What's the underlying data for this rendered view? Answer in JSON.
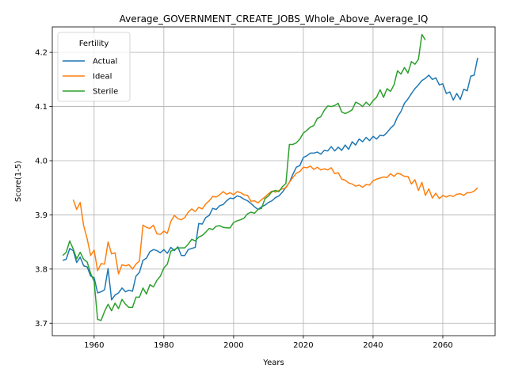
{
  "chart_data": {
    "type": "line",
    "title": "Average_GOVERNMENT_CREATE_JOBS_Whole_Above_Average_IQ",
    "xlabel": "Years",
    "ylabel": "Score(1-5)",
    "xlim": [
      1948,
      2075
    ],
    "ylim": [
      3.677,
      4.247
    ],
    "xticks": [
      1960,
      1980,
      2000,
      2020,
      2040,
      2060
    ],
    "yticks": [
      3.7,
      3.8,
      3.9,
      4.0,
      4.1,
      4.2
    ],
    "grid": true,
    "legend": {
      "title": "Fertility",
      "placement": "upper-left"
    },
    "series": [
      {
        "name": "Actual",
        "color": "#1f77b4",
        "x": [
          1951,
          1952,
          1953,
          1954,
          1955,
          1956,
          1957,
          1958,
          1959,
          1960,
          1961,
          1962,
          1963,
          1964,
          1965,
          1966,
          1967,
          1968,
          1969,
          1970,
          1971,
          1972,
          1973,
          1974,
          1975,
          1976,
          1977,
          1978,
          1979,
          1980,
          1981,
          1982,
          1983,
          1984,
          1985,
          1986,
          1987,
          1988,
          1989,
          1990,
          1991,
          1992,
          1993,
          1994,
          1995,
          1996,
          1997,
          1998,
          1999,
          2000,
          2001,
          2002,
          2003,
          2004,
          2005,
          2006,
          2007,
          2008,
          2009,
          2010,
          2011,
          2012,
          2013,
          2014,
          2015,
          2016,
          2017,
          2018,
          2019,
          2020,
          2021,
          2022,
          2023,
          2024,
          2025,
          2026,
          2027,
          2028,
          2029,
          2030,
          2031,
          2032,
          2033,
          2034,
          2035,
          2036,
          2037,
          2038,
          2039,
          2040,
          2041,
          2042,
          2043,
          2044,
          2045,
          2046,
          2047,
          2048,
          2049,
          2050,
          2051,
          2052,
          2053,
          2054,
          2055,
          2056,
          2057,
          2058,
          2059,
          2060,
          2061,
          2062,
          2063,
          2064,
          2065,
          2066,
          2067,
          2068,
          2069,
          2070
        ],
        "y": [
          3.816,
          3.818,
          3.838,
          3.834,
          3.812,
          3.822,
          3.806,
          3.804,
          3.787,
          3.784,
          3.756,
          3.758,
          3.762,
          3.801,
          3.743,
          3.752,
          3.756,
          3.765,
          3.758,
          3.761,
          3.759,
          3.787,
          3.794,
          3.816,
          3.82,
          3.832,
          3.836,
          3.834,
          3.83,
          3.836,
          3.829,
          3.84,
          3.834,
          3.841,
          3.825,
          3.825,
          3.836,
          3.838,
          3.84,
          3.884,
          3.883,
          3.895,
          3.899,
          3.912,
          3.91,
          3.917,
          3.919,
          3.926,
          3.931,
          3.93,
          3.935,
          3.933,
          3.929,
          3.926,
          3.921,
          3.915,
          3.91,
          3.915,
          3.918,
          3.923,
          3.926,
          3.932,
          3.935,
          3.942,
          3.951,
          3.96,
          3.975,
          3.988,
          3.991,
          4.006,
          4.009,
          4.014,
          4.014,
          4.016,
          4.012,
          4.019,
          4.018,
          4.026,
          4.018,
          4.025,
          4.019,
          4.029,
          4.021,
          4.035,
          4.029,
          4.04,
          4.035,
          4.043,
          4.037,
          4.045,
          4.04,
          4.047,
          4.046,
          4.052,
          4.06,
          4.066,
          4.081,
          4.091,
          4.106,
          4.114,
          4.124,
          4.133,
          4.14,
          4.148,
          4.152,
          4.158,
          4.15,
          4.153,
          4.14,
          4.142,
          4.124,
          4.127,
          4.112,
          4.124,
          4.113,
          4.132,
          4.129,
          4.156,
          4.158,
          4.19
        ]
      },
      {
        "name": "Ideal",
        "color": "#ff7f0e",
        "x": [
          1954,
          1955,
          1956,
          1957,
          1958,
          1959,
          1960,
          1961,
          1962,
          1963,
          1964,
          1965,
          1966,
          1967,
          1968,
          1969,
          1970,
          1971,
          1972,
          1973,
          1974,
          1975,
          1976,
          1977,
          1978,
          1979,
          1980,
          1981,
          1982,
          1983,
          1984,
          1985,
          1986,
          1987,
          1988,
          1989,
          1990,
          1991,
          1992,
          1993,
          1994,
          1995,
          1996,
          1997,
          1998,
          1999,
          2000,
          2001,
          2002,
          2003,
          2004,
          2005,
          2006,
          2007,
          2008,
          2009,
          2010,
          2011,
          2012,
          2013,
          2014,
          2015,
          2016,
          2017,
          2018,
          2019,
          2020,
          2021,
          2022,
          2023,
          2024,
          2025,
          2026,
          2027,
          2028,
          2029,
          2030,
          2031,
          2032,
          2033,
          2034,
          2035,
          2036,
          2037,
          2038,
          2039,
          2040,
          2041,
          2042,
          2043,
          2044,
          2045,
          2046,
          2047,
          2048,
          2049,
          2050,
          2051,
          2052,
          2053,
          2054,
          2055,
          2056,
          2057,
          2058,
          2059,
          2060,
          2061,
          2062,
          2063,
          2064,
          2065,
          2066,
          2067,
          2068,
          2069,
          2070
        ],
        "y": [
          3.928,
          3.91,
          3.923,
          3.88,
          3.856,
          3.825,
          3.835,
          3.797,
          3.81,
          3.809,
          3.85,
          3.828,
          3.83,
          3.791,
          3.808,
          3.806,
          3.808,
          3.8,
          3.809,
          3.815,
          3.881,
          3.877,
          3.875,
          3.881,
          3.865,
          3.864,
          3.87,
          3.866,
          3.888,
          3.899,
          3.893,
          3.891,
          3.895,
          3.905,
          3.911,
          3.906,
          3.914,
          3.911,
          3.92,
          3.926,
          3.934,
          3.933,
          3.937,
          3.943,
          3.938,
          3.941,
          3.937,
          3.943,
          3.941,
          3.937,
          3.936,
          3.925,
          3.926,
          3.922,
          3.928,
          3.933,
          3.939,
          3.944,
          3.942,
          3.945,
          3.948,
          3.95,
          3.96,
          3.969,
          3.977,
          3.98,
          3.988,
          3.987,
          3.99,
          3.984,
          3.988,
          3.983,
          3.985,
          3.983,
          3.987,
          3.976,
          3.978,
          3.966,
          3.964,
          3.959,
          3.957,
          3.953,
          3.955,
          3.951,
          3.956,
          3.955,
          3.963,
          3.966,
          3.968,
          3.97,
          3.969,
          3.976,
          3.971,
          3.977,
          3.975,
          3.971,
          3.971,
          3.957,
          3.965,
          3.945,
          3.96,
          3.936,
          3.948,
          3.931,
          3.94,
          3.93,
          3.936,
          3.933,
          3.936,
          3.934,
          3.938,
          3.939,
          3.936,
          3.941,
          3.941,
          3.944,
          3.95
        ]
      },
      {
        "name": "Sterile",
        "color": "#2ca02c",
        "x": [
          1951,
          1952,
          1953,
          1954,
          1955,
          1956,
          1957,
          1958,
          1959,
          1960,
          1961,
          1962,
          1963,
          1964,
          1965,
          1966,
          1967,
          1968,
          1969,
          1970,
          1971,
          1972,
          1973,
          1974,
          1975,
          1976,
          1977,
          1978,
          1979,
          1980,
          1981,
          1982,
          1983,
          1984,
          1985,
          1986,
          1987,
          1988,
          1989,
          1990,
          1991,
          1992,
          1993,
          1994,
          1995,
          1996,
          1997,
          1998,
          1999,
          2000,
          2001,
          2002,
          2003,
          2004,
          2005,
          2006,
          2007,
          2008,
          2009,
          2010,
          2011,
          2012,
          2013,
          2014,
          2015,
          2016,
          2017,
          2018,
          2019,
          2020,
          2021,
          2022,
          2023,
          2024,
          2025,
          2026,
          2027,
          2028,
          2029,
          2030,
          2031,
          2032,
          2033,
          2034,
          2035,
          2036,
          2037,
          2038,
          2039,
          2040,
          2041,
          2042,
          2043,
          2044,
          2045,
          2046,
          2047,
          2048,
          2049,
          2050,
          2051,
          2052,
          2053,
          2054,
          2055
        ],
        "y": [
          3.825,
          3.831,
          3.852,
          3.837,
          3.819,
          3.831,
          3.818,
          3.813,
          3.792,
          3.777,
          3.707,
          3.705,
          3.722,
          3.735,
          3.723,
          3.737,
          3.727,
          3.744,
          3.735,
          3.729,
          3.729,
          3.748,
          3.748,
          3.765,
          3.754,
          3.771,
          3.767,
          3.779,
          3.787,
          3.802,
          3.809,
          3.833,
          3.836,
          3.839,
          3.839,
          3.839,
          3.846,
          3.855,
          3.852,
          3.859,
          3.862,
          3.868,
          3.875,
          3.873,
          3.879,
          3.88,
          3.877,
          3.876,
          3.876,
          3.886,
          3.889,
          3.891,
          3.894,
          3.902,
          3.905,
          3.903,
          3.91,
          3.912,
          3.93,
          3.935,
          3.943,
          3.945,
          3.943,
          3.952,
          3.958,
          4.03,
          4.03,
          4.033,
          4.04,
          4.051,
          4.056,
          4.062,
          4.065,
          4.078,
          4.081,
          4.093,
          4.101,
          4.1,
          4.102,
          4.106,
          4.09,
          4.087,
          4.09,
          4.094,
          4.108,
          4.105,
          4.1,
          4.108,
          4.102,
          4.111,
          4.117,
          4.131,
          4.117,
          4.133,
          4.128,
          4.14,
          4.166,
          4.16,
          4.172,
          4.162,
          4.183,
          4.178,
          4.187,
          4.233,
          4.223
        ]
      }
    ]
  }
}
